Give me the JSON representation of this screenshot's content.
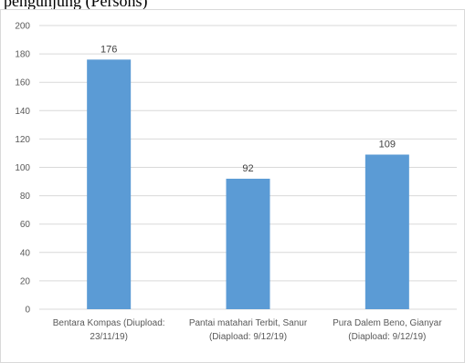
{
  "caption_fragment": "pengunjung (Persons)",
  "chart_data": {
    "type": "bar",
    "categories": [
      [
        "Bentara Kompas (Diupload:",
        "23/11/19)"
      ],
      [
        "Pantai matahari Terbit, Sanur",
        "(Diapload: 9/12/19)"
      ],
      [
        "Pura Dalem Beno, Gianyar",
        "(Diapload: 9/12/19)"
      ]
    ],
    "values": [
      176,
      92,
      109
    ],
    "ylim": [
      0,
      200
    ],
    "yticks": [
      0,
      20,
      40,
      60,
      80,
      100,
      120,
      140,
      160,
      180,
      200
    ],
    "grid": true,
    "bar_color": "#5B9BD5",
    "grid_color": "#D9D9D9",
    "title": "",
    "xlabel": "",
    "ylabel": ""
  }
}
